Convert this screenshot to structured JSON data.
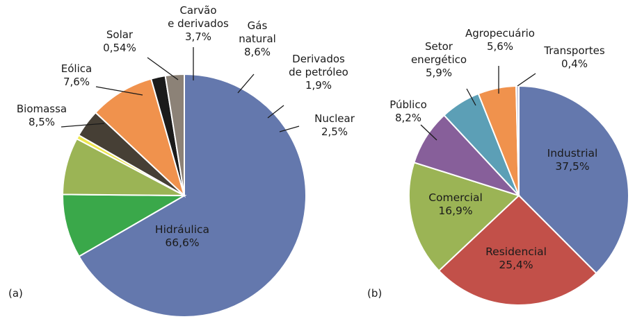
{
  "chart_data": [
    {
      "type": "pie",
      "panel_label": "(a)",
      "title": "",
      "slices": [
        {
          "lines": [
            "Hidráulica",
            "66,6%"
          ],
          "value": 66.6,
          "color": "#6478ad"
        },
        {
          "lines": [
            "Biomassa",
            "8,5%"
          ],
          "value": 8.5,
          "color": "#3aa84a"
        },
        {
          "lines": [
            "Eólica",
            "7,6%"
          ],
          "value": 7.6,
          "color": "#9bb455"
        },
        {
          "lines": [
            "Solar",
            "0,54%"
          ],
          "value": 0.54,
          "color": "#ede64e"
        },
        {
          "lines": [
            "Carvão",
            "e derivados",
            "3,7%"
          ],
          "value": 3.7,
          "color": "#463f35"
        },
        {
          "lines": [
            "Gás",
            "natural",
            "8,6%"
          ],
          "value": 8.6,
          "color": "#f0924d"
        },
        {
          "lines": [
            "Derivados",
            "de petróleo",
            "1,9%"
          ],
          "value": 1.9,
          "color": "#1b1b1b"
        },
        {
          "lines": [
            "Nuclear",
            "2,5%"
          ],
          "value": 2.5,
          "color": "#8c8277"
        }
      ]
    },
    {
      "type": "pie",
      "panel_label": "(b)",
      "title": "",
      "slices": [
        {
          "lines": [
            "Industrial",
            "37,5%"
          ],
          "value": 37.5,
          "color": "#6478ad"
        },
        {
          "lines": [
            "Residencial",
            "25,4%"
          ],
          "value": 25.4,
          "color": "#c25049"
        },
        {
          "lines": [
            "Comercial",
            "16,9%"
          ],
          "value": 16.9,
          "color": "#9bb455"
        },
        {
          "lines": [
            "Público",
            "8,2%"
          ],
          "value": 8.2,
          "color": "#875f9a"
        },
        {
          "lines": [
            "Setor",
            "energético",
            "5,9%"
          ],
          "value": 5.9,
          "color": "#5c9fb6"
        },
        {
          "lines": [
            "Agropecuário",
            "5,6%"
          ],
          "value": 5.6,
          "color": "#f0924d"
        },
        {
          "lines": [
            "Transportes",
            "0,4%"
          ],
          "value": 0.4,
          "color": "#c8cbe0"
        }
      ]
    }
  ]
}
